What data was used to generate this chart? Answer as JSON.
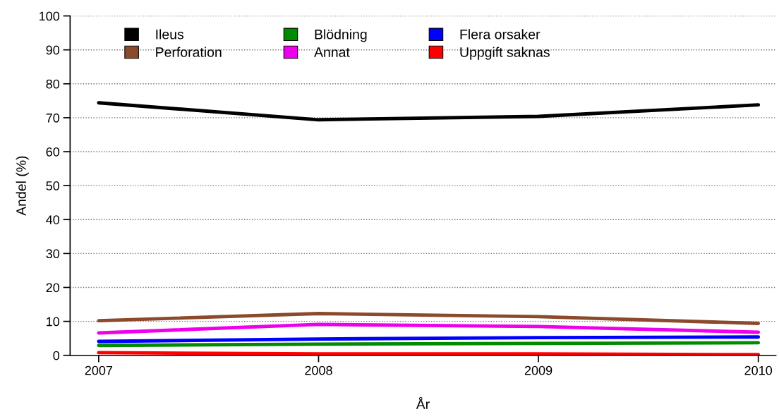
{
  "chart_data": {
    "type": "line",
    "xlabel": "År",
    "ylabel": "Andel (%)",
    "x": [
      2007,
      2008,
      2009,
      2010
    ],
    "xlim": [
      2006.87,
      2010.08
    ],
    "xticks": [
      2007,
      2008,
      2009,
      2010
    ],
    "ylim": [
      0,
      100
    ],
    "yticks": [
      0,
      10,
      20,
      30,
      40,
      50,
      60,
      70,
      80,
      90,
      100
    ],
    "grid": "y",
    "legend": "top left",
    "marker": "none",
    "line_style": "solid",
    "series": [
      {
        "name": "Ileus",
        "color": "#000000",
        "values": [
          74.4,
          69.4,
          70.4,
          73.8
        ]
      },
      {
        "name": "Perforation",
        "color": "#8b4a2b",
        "values": [
          10.2,
          12.3,
          11.4,
          9.4
        ]
      },
      {
        "name": "Blödning",
        "color": "#008b00",
        "values": [
          2.9,
          3.3,
          3.5,
          3.7
        ]
      },
      {
        "name": "Annat",
        "color": "#ee00ee",
        "values": [
          6.6,
          9.1,
          8.5,
          6.8
        ]
      },
      {
        "name": "Flera orsaker",
        "color": "#0000ff",
        "values": [
          4.1,
          4.8,
          5.2,
          5.4
        ]
      },
      {
        "name": "Uppgift saknas",
        "color": "#ff0000",
        "values": [
          0.8,
          0.4,
          0.4,
          0.2
        ]
      }
    ]
  }
}
